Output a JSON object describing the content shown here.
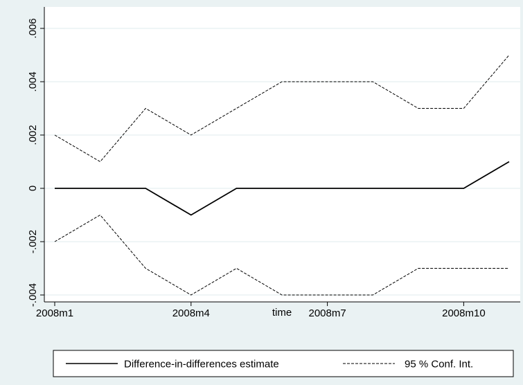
{
  "chart_data": {
    "type": "line",
    "xlabel": "time",
    "ylabel": "",
    "x": [
      "2008m1",
      "2008m2",
      "2008m3",
      "2008m4",
      "2008m5",
      "2008m6",
      "2008m7",
      "2008m8",
      "2008m9",
      "2008m10",
      "2008m11"
    ],
    "xticks": [
      "2008m1",
      "2008m4",
      "2008m7",
      "2008m10"
    ],
    "ylim": [
      -0.004,
      0.006
    ],
    "yticks": [
      -0.004,
      -0.002,
      0,
      0.002,
      0.004,
      0.006
    ],
    "ytick_labels": [
      "-.004",
      "-.002",
      "0",
      ".002",
      ".004",
      ".006"
    ],
    "grid": true,
    "legend_position": "bottom",
    "series": [
      {
        "name": "Difference-in-differences estimate",
        "style": "solid",
        "color": "#000000",
        "values": [
          0,
          0,
          0,
          -0.001,
          0,
          0,
          0,
          0,
          0,
          0,
          0.001
        ]
      },
      {
        "name": "95 % Conf. Int.",
        "style": "dashed",
        "color": "#000000",
        "values": [
          0.002,
          0.001,
          0.003,
          0.002,
          0.003,
          0.004,
          0.004,
          0.004,
          0.003,
          0.003,
          0.005
        ]
      },
      {
        "name": "",
        "legend": false,
        "style": "dashed",
        "color": "#000000",
        "values": [
          -0.002,
          -0.001,
          -0.003,
          -0.004,
          -0.003,
          -0.004,
          -0.004,
          -0.004,
          -0.003,
          -0.003,
          -0.003
        ]
      }
    ]
  },
  "colors": {
    "outer_background": "#eaf2f3",
    "plot_background": "#ffffff",
    "gridline": "#eaf2f3",
    "line": "#000000"
  }
}
